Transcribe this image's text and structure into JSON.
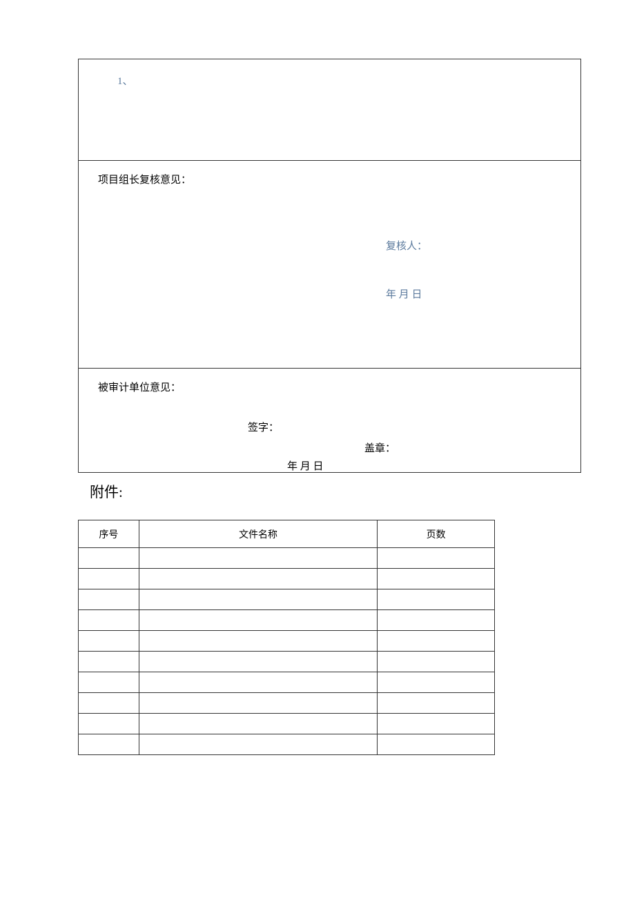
{
  "sections": {
    "top": {
      "item_number": "1、"
    },
    "review": {
      "title": "项目组长复核意见：",
      "reviewer_label": "复核人：",
      "date_label": "年 月 日"
    },
    "audit": {
      "title": "被审计单位意见：",
      "sign_label": "签字：",
      "seal_label": "盖章：",
      "date_label": "年 月 日"
    }
  },
  "attachment": {
    "label": "附件:",
    "headers": {
      "seq": "序号",
      "name": "文件名称",
      "pages": "页数"
    },
    "row_count": 10
  },
  "colors": {
    "accent": "#5b7a9d",
    "text": "#000000",
    "border": "#333333",
    "background": "#ffffff"
  }
}
